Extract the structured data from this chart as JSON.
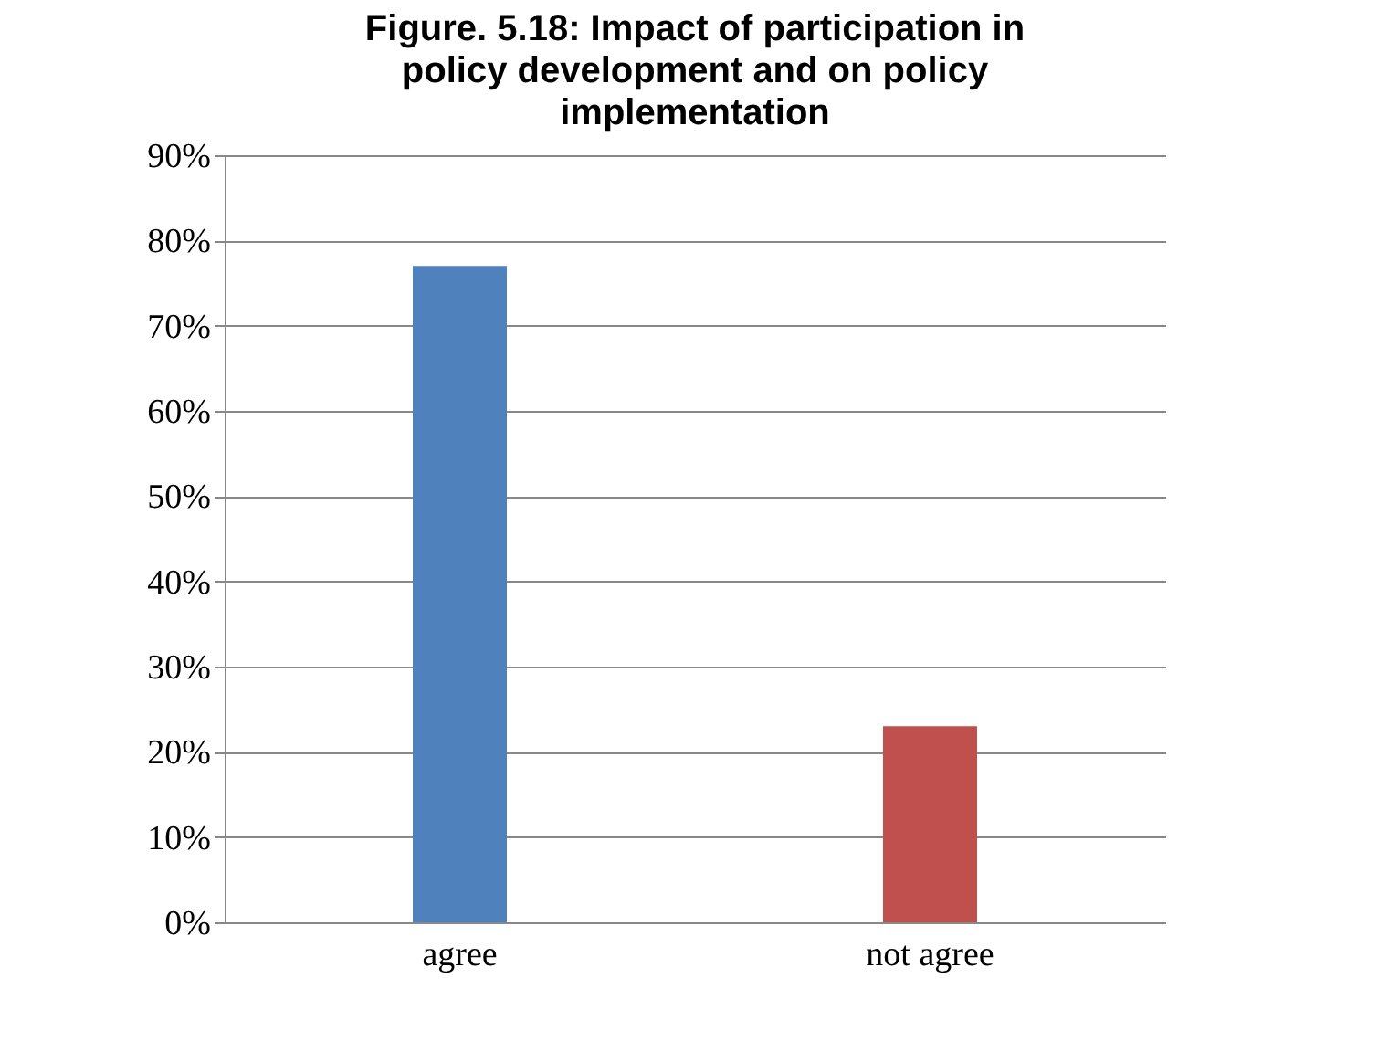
{
  "chart_data": {
    "type": "bar",
    "title": "Figure.  5.18: Impact of participation in policy development  and on policy implementation",
    "categories": [
      "agree",
      "not agree"
    ],
    "values": [
      77,
      23
    ],
    "colors": [
      "#4f81bd",
      "#c0504d"
    ],
    "ylim": [
      0,
      90
    ],
    "yticks": [
      {
        "value": 0,
        "label": "0%"
      },
      {
        "value": 10,
        "label": "10%"
      },
      {
        "value": 20,
        "label": "20%"
      },
      {
        "value": 30,
        "label": "30%"
      },
      {
        "value": 40,
        "label": "40%"
      },
      {
        "value": 50,
        "label": "50%"
      },
      {
        "value": 60,
        "label": "60%"
      },
      {
        "value": 70,
        "label": "70%"
      },
      {
        "value": 80,
        "label": "80%"
      },
      {
        "value": 90,
        "label": "90%"
      }
    ],
    "grid": "y",
    "legend": false
  }
}
